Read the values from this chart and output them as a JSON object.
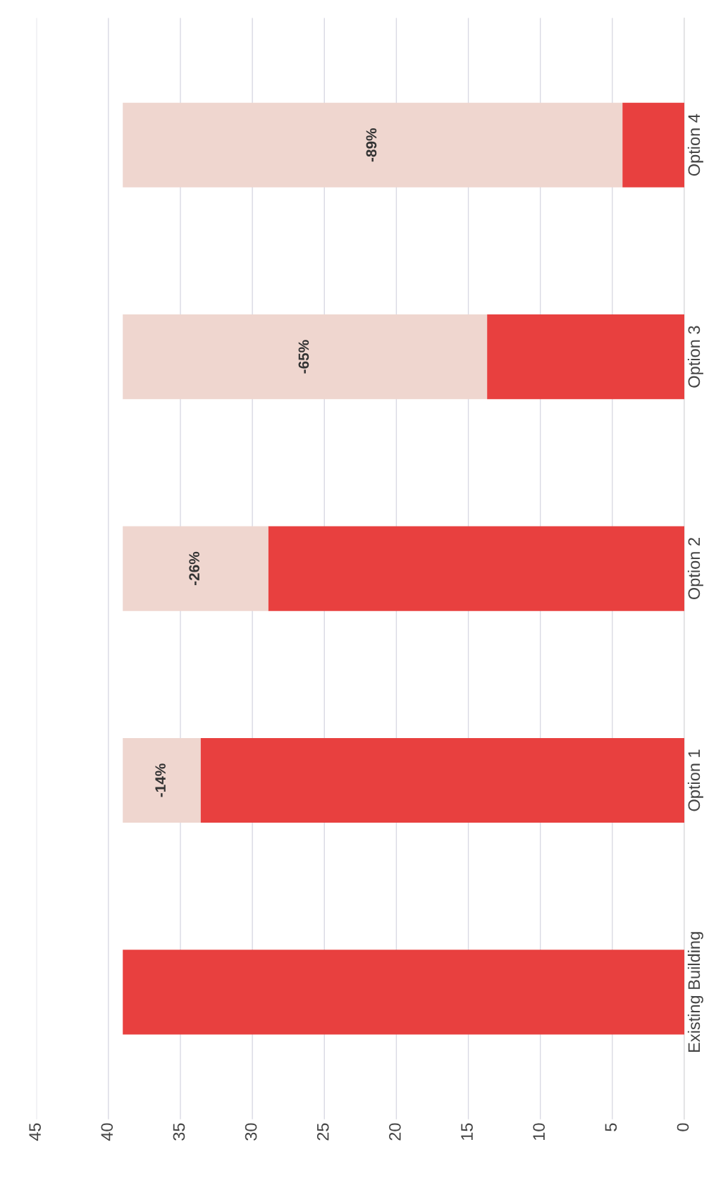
{
  "chart_data": {
    "type": "bar",
    "orientation": "horizontal",
    "stacked": true,
    "categories": [
      "Option 4",
      "Option 3",
      "Option 2",
      "Option 1",
      "Existing Building"
    ],
    "series": [
      {
        "color": "#e8403f",
        "values": [
          4.3,
          13.7,
          28.9,
          33.6,
          39.0
        ]
      },
      {
        "color": "#efd6cf",
        "values": [
          34.7,
          25.3,
          10.1,
          5.4,
          null
        ]
      }
    ],
    "annotations": [
      "-89%",
      "-65%",
      "-26%",
      "-14%"
    ],
    "xlim": [
      45,
      0
    ],
    "xticks": [
      0,
      5,
      10,
      15,
      20,
      25,
      30,
      35,
      40,
      45
    ],
    "grid": "x"
  }
}
